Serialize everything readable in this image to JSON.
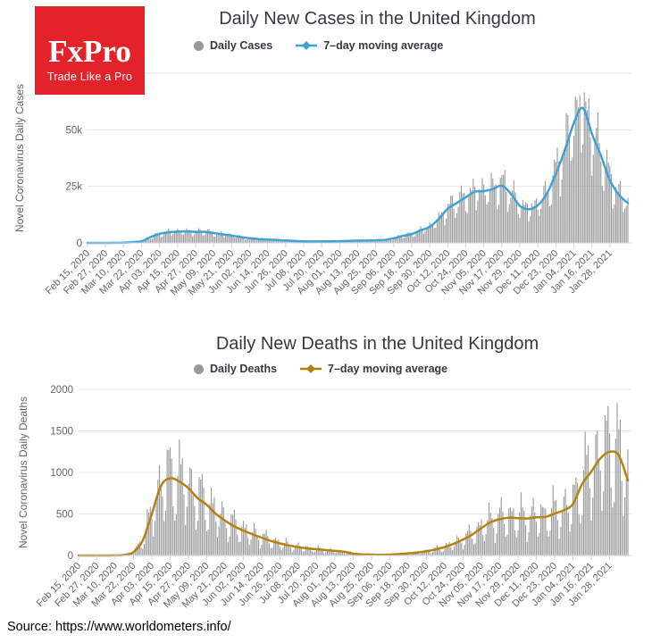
{
  "page": {
    "background": "#ffffff",
    "source_text": "Source: https://www.worldometers.info/"
  },
  "logo": {
    "brand": "FxPro",
    "tagline": "Trade Like a Pro",
    "bg_color": "#e3222a",
    "text_color": "#ffffff"
  },
  "style_colors": {
    "grid": "#e6e6e6",
    "axis_line": "#ccd6eb",
    "tick_label": "#666666",
    "axis_title": "#666666",
    "chart_title": "#333a42",
    "bar": "#999999"
  },
  "chart_data": [
    {
      "type": "bar",
      "title": "Daily New Cases in the United Kingdom",
      "ylabel": "Novel Coronavirus Daily Cases",
      "ylim": [
        0,
        75000
      ],
      "grid": true,
      "legend_position": "top",
      "gridline_values": [
        25000,
        50000,
        75000
      ],
      "yticks": [
        {
          "value": 0,
          "label": "0"
        },
        {
          "value": 25000,
          "label": "25k"
        },
        {
          "value": 50000,
          "label": "50k"
        }
      ],
      "x_tick_interval_days": 12,
      "x_tick_labels": [
        "Feb 15, 2020",
        "Feb 27, 2020",
        "Mar 10, 2020",
        "Mar 22, 2020",
        "Apr 03, 2020",
        "Apr 15, 2020",
        "Apr 27, 2020",
        "May 09, 2020",
        "May 21, 2020",
        "Jun 02, 2020",
        "Jun 14, 2020",
        "Jun 26, 2020",
        "Jul 08, 2020",
        "Jul 20, 2020",
        "Aug 01, 2020",
        "Aug 13, 2020",
        "Aug 25, 2020",
        "Sep 06, 2020",
        "Sep 18, 2020",
        "Sep 30, 2020",
        "Oct 12, 2020",
        "Oct 24, 2020",
        "Nov 05, 2020",
        "Nov 17, 2020",
        "Nov 29, 2020",
        "Dec 11, 2020",
        "Dec 23, 2020",
        "Jan 04, 2021",
        "Jan 16, 2021",
        "Jan 28, 2021"
      ],
      "series": [
        {
          "name": "Daily Cases",
          "type": "bar",
          "color": "#999999",
          "synthesis": {
            "weekday_factors": [
              0.66,
              0.74,
              1.02,
              1.16,
              1.22,
              1.18,
              1.02
            ],
            "jitter_waves": [
              [
                0.1,
                2.13
              ],
              [
                0.06,
                0.71
              ]
            ],
            "cap_fraction": 0.95
          }
        },
        {
          "name": "7–day moving average",
          "type": "line",
          "color": "#3fa2d6",
          "sample_interval_days": 6,
          "values": [
            2,
            3,
            5,
            35,
            60,
            400,
            750,
            2600,
            4000,
            4700,
            5000,
            5100,
            4850,
            4900,
            4350,
            3800,
            3250,
            2600,
            2050,
            1700,
            1500,
            1250,
            1050,
            850,
            680,
            640,
            660,
            720,
            800,
            880,
            1000,
            1080,
            1200,
            1350,
            2050,
            3100,
            3900,
            5600,
            7100,
            10600,
            15100,
            17600,
            20200,
            22600,
            22900,
            23800,
            25300,
            21800,
            16400,
            14900,
            16600,
            21800,
            30500,
            41000,
            53000,
            59600,
            48300,
            38600,
            27800,
            21300,
            17600
          ]
        }
      ]
    },
    {
      "type": "bar",
      "title": "Daily New Deaths in the United Kingdom",
      "ylabel": "Novel Coronavirus Daily Deaths",
      "ylim": [
        0,
        2000
      ],
      "grid": true,
      "legend_position": "top",
      "gridline_values": [
        500,
        1000,
        1500,
        2000
      ],
      "yticks": [
        {
          "value": 0,
          "label": "0"
        },
        {
          "value": 500,
          "label": "500"
        },
        {
          "value": 1000,
          "label": "1000"
        },
        {
          "value": 1500,
          "label": "1500"
        },
        {
          "value": 2000,
          "label": "2000"
        }
      ],
      "x_tick_interval_days": 12,
      "x_tick_labels": [
        "Feb 15, 2020",
        "Feb 27, 2020",
        "Mar 10, 2020",
        "Mar 22, 2020",
        "Apr 03, 2020",
        "Apr 15, 2020",
        "Apr 27, 2020",
        "May 09, 2020",
        "May 21, 2020",
        "Jun 02, 2020",
        "Jun 14, 2020",
        "Jun 26, 2020",
        "Jul 08, 2020",
        "Jul 20, 2020",
        "Aug 01, 2020",
        "Aug 13, 2020",
        "Aug 25, 2020",
        "Sep 06, 2020",
        "Sep 18, 2020",
        "Sep 30, 2020",
        "Oct 12, 2020",
        "Oct 24, 2020",
        "Nov 05, 2020",
        "Nov 17, 2020",
        "Nov 29, 2020",
        "Dec 11, 2020",
        "Dec 23, 2020",
        "Jan 04, 2021",
        "Jan 16, 2021",
        "Jan 28, 2021"
      ],
      "series": [
        {
          "name": "Daily Deaths",
          "type": "bar",
          "color": "#999999",
          "synthesis": {
            "weekday_factors": [
              0.45,
              0.62,
              1.18,
              1.42,
              1.35,
              1.2,
              0.78
            ],
            "jitter_waves": [
              [
                0.12,
                2.41
              ],
              [
                0.08,
                0.57
              ]
            ],
            "cap_fraction": 0.92
          }
        },
        {
          "name": "7–day moving average",
          "type": "line",
          "color": "#b5820f",
          "sample_interval_days": 6,
          "values": [
            0,
            0,
            0,
            0,
            1,
            8,
            40,
            180,
            500,
            840,
            930,
            890,
            810,
            690,
            610,
            500,
            420,
            350,
            300,
            255,
            215,
            175,
            145,
            120,
            100,
            85,
            75,
            65,
            55,
            45,
            22,
            14,
            11,
            9,
            11,
            16,
            26,
            36,
            52,
            72,
            102,
            142,
            192,
            252,
            330,
            400,
            437,
            455,
            450,
            445,
            460,
            465,
            505,
            545,
            620,
            860,
            1010,
            1170,
            1250,
            1205,
            905
          ]
        }
      ]
    }
  ]
}
